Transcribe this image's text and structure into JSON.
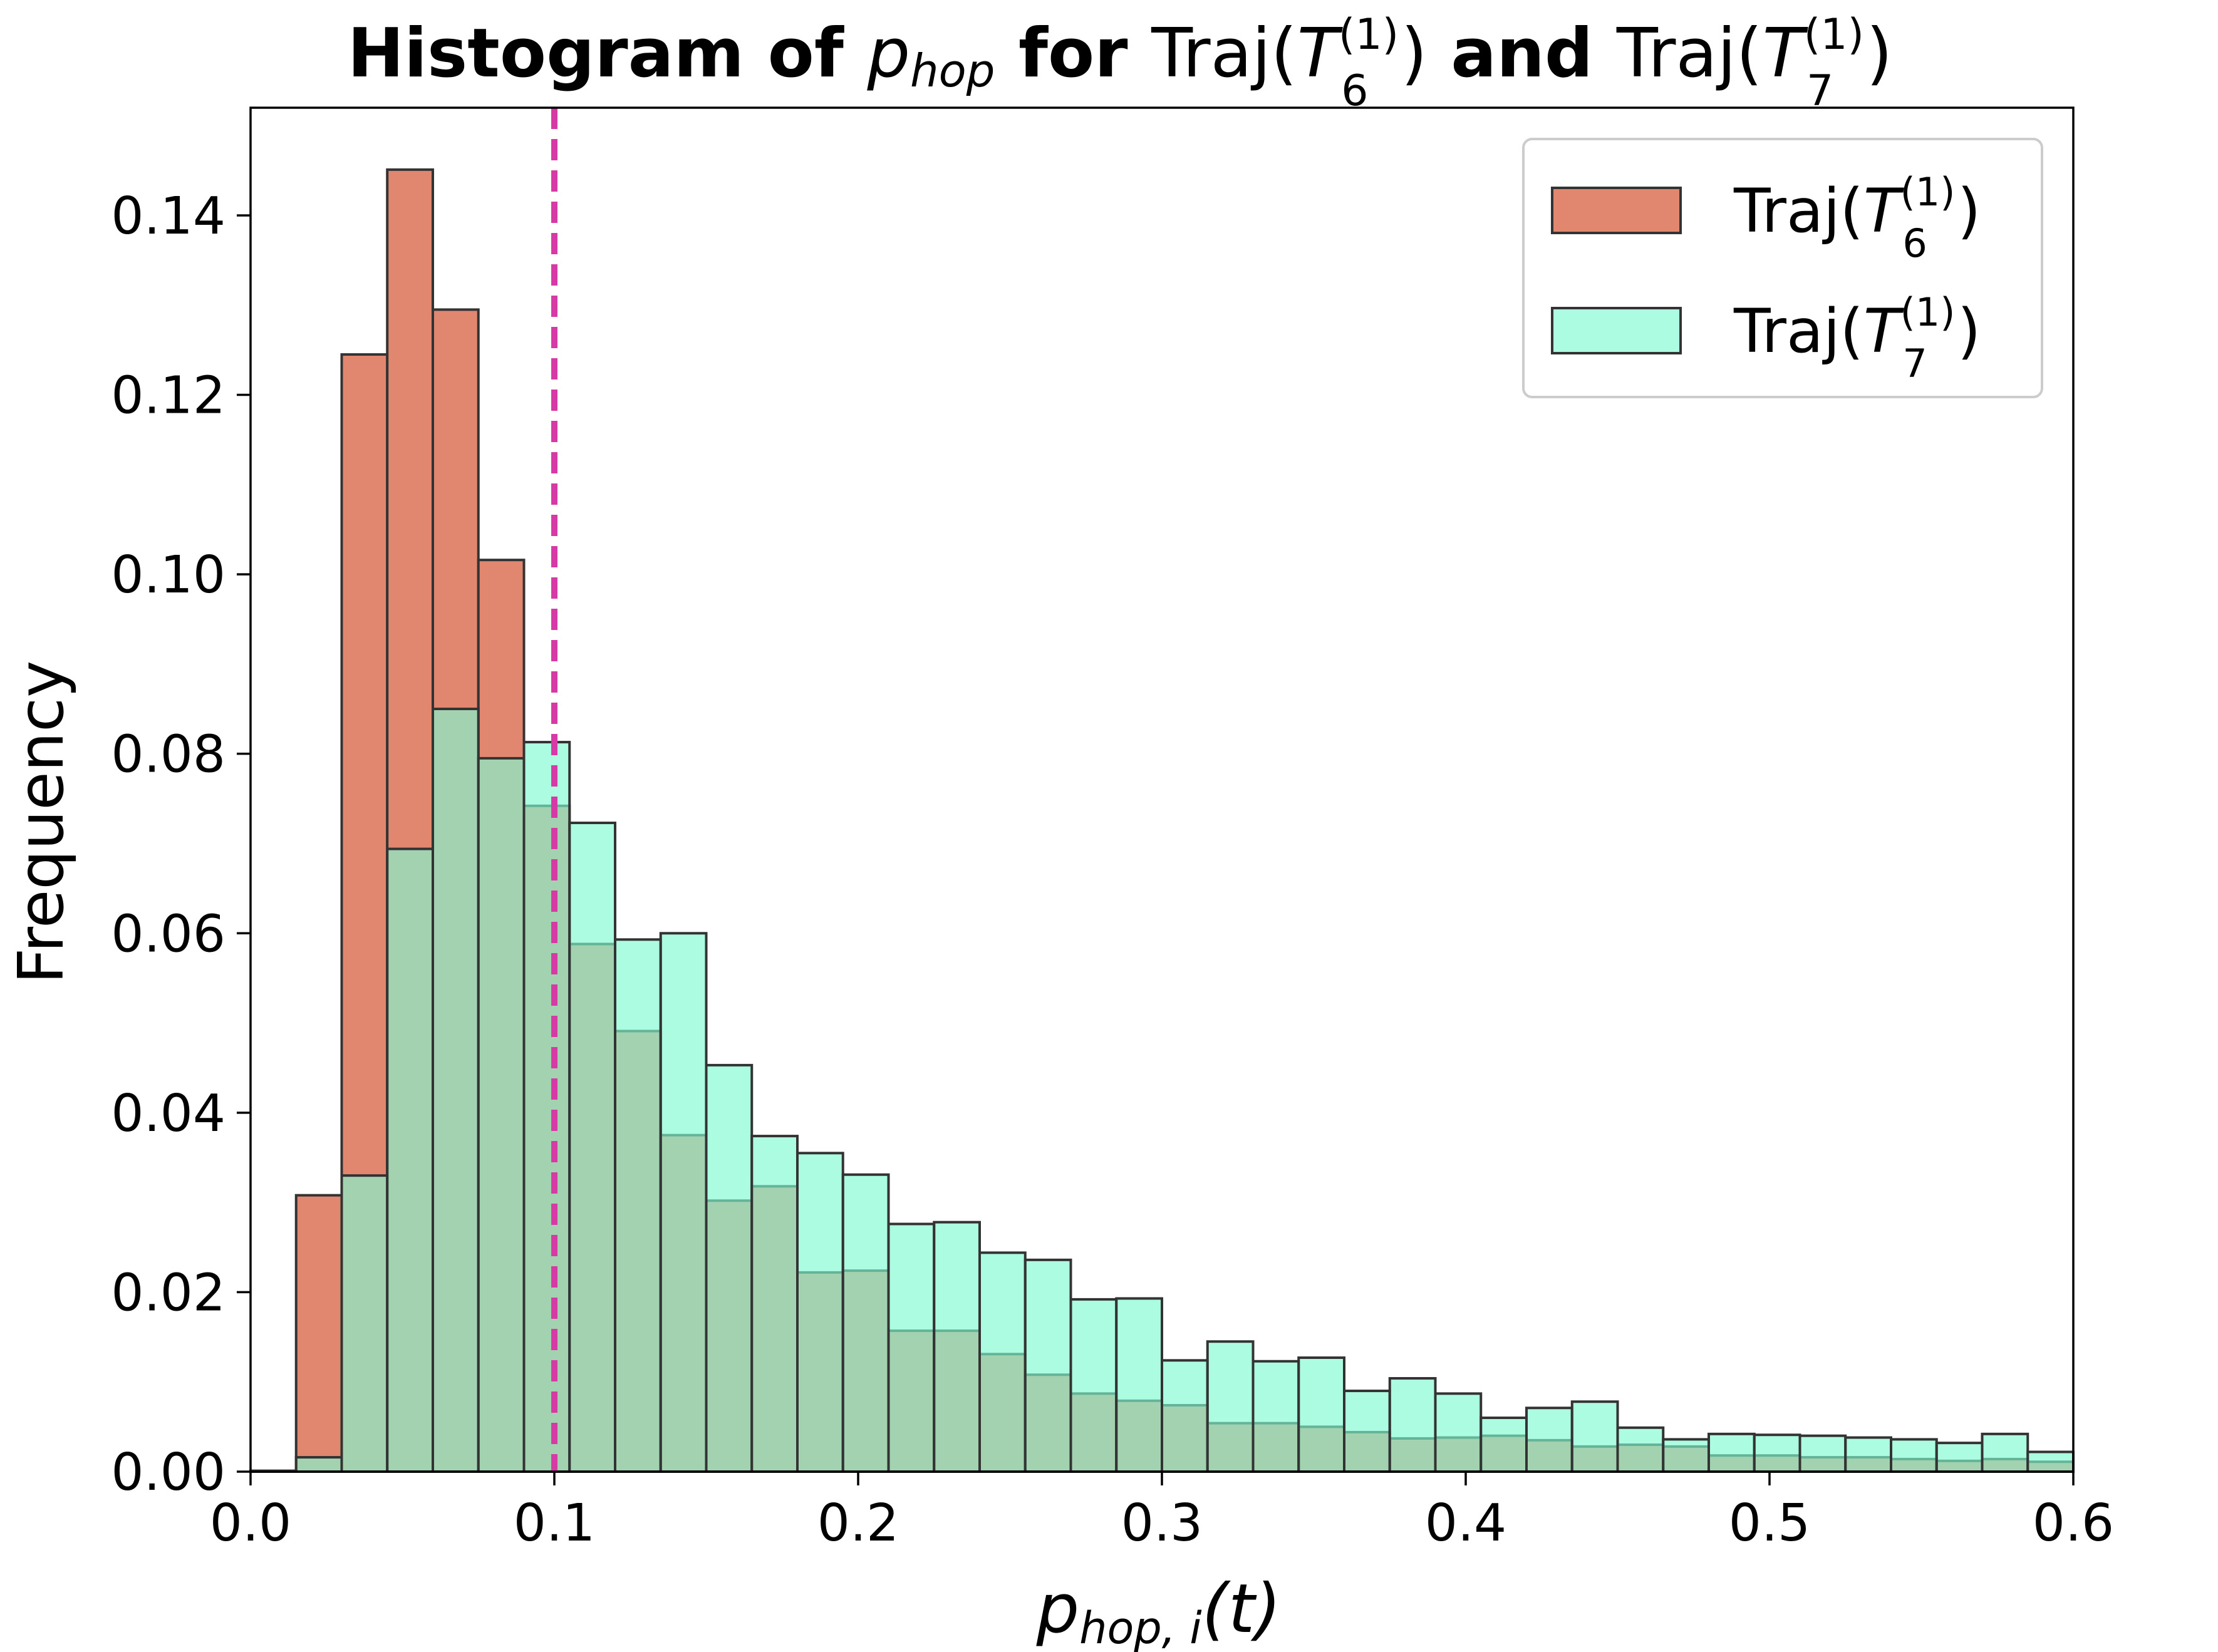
{
  "chart_data": {
    "type": "bar",
    "title_parts": {
      "t1": "Histogram of ",
      "t2": "p",
      "t3": "hop",
      "t4": " for ",
      "t5": "Traj(",
      "t6": "T",
      "t7": "(1)",
      "t8": "6",
      "t9": ")",
      "t10": " and ",
      "t11": "Traj(",
      "t12": "T",
      "t13": "(1)",
      "t14": "7",
      "t15": ")"
    },
    "xlabel_parts": {
      "main": "p",
      "sub": "hop, i",
      "tail": "(t)"
    },
    "ylabel": "Frequency",
    "xlim": [
      0.0,
      0.6
    ],
    "ylim": [
      0.0,
      0.152
    ],
    "xticks": [
      "0.0",
      "0.1",
      "0.2",
      "0.3",
      "0.4",
      "0.5",
      "0.6"
    ],
    "xtick_values": [
      0.0,
      0.1,
      0.2,
      0.3,
      0.4,
      0.5,
      0.6
    ],
    "yticks": [
      "0.00",
      "0.02",
      "0.04",
      "0.06",
      "0.08",
      "0.10",
      "0.12",
      "0.14"
    ],
    "ytick_values": [
      0.0,
      0.02,
      0.04,
      0.06,
      0.08,
      0.1,
      0.12,
      0.14
    ],
    "bin_width": 0.015,
    "bin_starts": [
      0.0,
      0.015,
      0.03,
      0.045,
      0.06,
      0.075,
      0.09,
      0.105,
      0.12,
      0.135,
      0.15,
      0.165,
      0.18,
      0.195,
      0.21,
      0.225,
      0.24,
      0.255,
      0.27,
      0.285,
      0.3,
      0.315,
      0.33,
      0.345,
      0.36,
      0.375,
      0.39,
      0.405,
      0.42,
      0.435,
      0.45,
      0.465,
      0.48,
      0.495,
      0.51,
      0.525,
      0.54,
      0.555,
      0.57,
      0.585
    ],
    "series": [
      {
        "name": "Traj(T6(1))",
        "legend": {
          "pre": "Traj(",
          "T": "T",
          "sup": "(1)",
          "sub": "6",
          "post": ")"
        },
        "color": "#e2876f",
        "opacity": 1.0,
        "values": [
          0.0001,
          0.0308,
          0.1245,
          0.1451,
          0.1295,
          0.1016,
          0.0742,
          0.0588,
          0.0491,
          0.0375,
          0.0302,
          0.0318,
          0.0222,
          0.0224,
          0.0157,
          0.0157,
          0.0131,
          0.0108,
          0.0087,
          0.0079,
          0.0074,
          0.0054,
          0.0054,
          0.005,
          0.0044,
          0.0037,
          0.0038,
          0.004,
          0.0035,
          0.0028,
          0.003,
          0.0028,
          0.0018,
          0.0018,
          0.0016,
          0.0016,
          0.0014,
          0.0012,
          0.0014,
          0.0011
        ]
      },
      {
        "name": "Traj(T7(1))",
        "legend": {
          "pre": "Traj(",
          "T": "T",
          "sup": "(1)",
          "sub": "7",
          "post": ")"
        },
        "color": "#7ffad3",
        "opacity": 0.65,
        "values": [
          0.0,
          0.0016,
          0.033,
          0.0694,
          0.085,
          0.0795,
          0.0813,
          0.0723,
          0.0593,
          0.06,
          0.0453,
          0.0374,
          0.0355,
          0.0331,
          0.0276,
          0.0278,
          0.0244,
          0.0236,
          0.0192,
          0.0193,
          0.0124,
          0.0145,
          0.0123,
          0.0127,
          0.009,
          0.0104,
          0.0087,
          0.006,
          0.0071,
          0.0078,
          0.0049,
          0.0036,
          0.0042,
          0.0041,
          0.004,
          0.0038,
          0.0036,
          0.0032,
          0.0042,
          0.0022
        ]
      }
    ],
    "reference_line": {
      "x": 0.1,
      "color": "#d63aa5",
      "style": "dashed"
    },
    "edge_color": "#333333",
    "legend_position": "top-right",
    "grid": false
  }
}
